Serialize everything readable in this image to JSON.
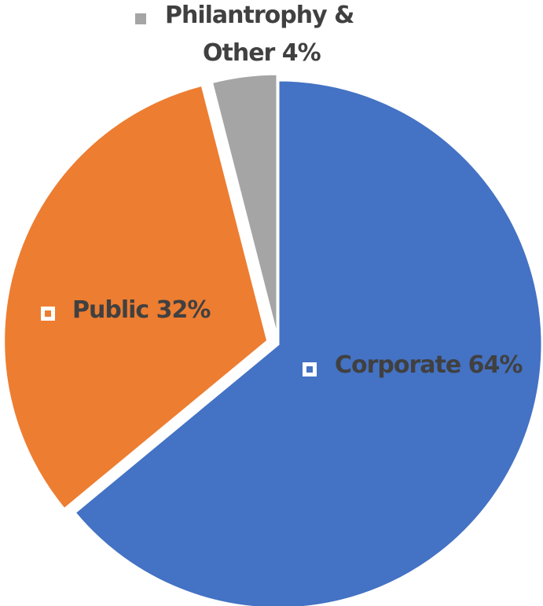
{
  "chart_data": {
    "type": "pie",
    "categories": [
      "Corporate",
      "Public",
      "Philantrophy & Other"
    ],
    "values": [
      64,
      32,
      4
    ],
    "unit": "%",
    "colors": [
      "#4472C4",
      "#ED7D31",
      "#A5A5A5"
    ],
    "title": "",
    "legend": "none",
    "labels": [
      {
        "lines": [
          "Corporate 64%"
        ],
        "marker": "outlined"
      },
      {
        "lines": [
          "Public 32%"
        ],
        "marker": "outlined"
      },
      {
        "lines": [
          "Philantrophy &",
          "Other 4%"
        ],
        "marker": "filled"
      }
    ]
  }
}
